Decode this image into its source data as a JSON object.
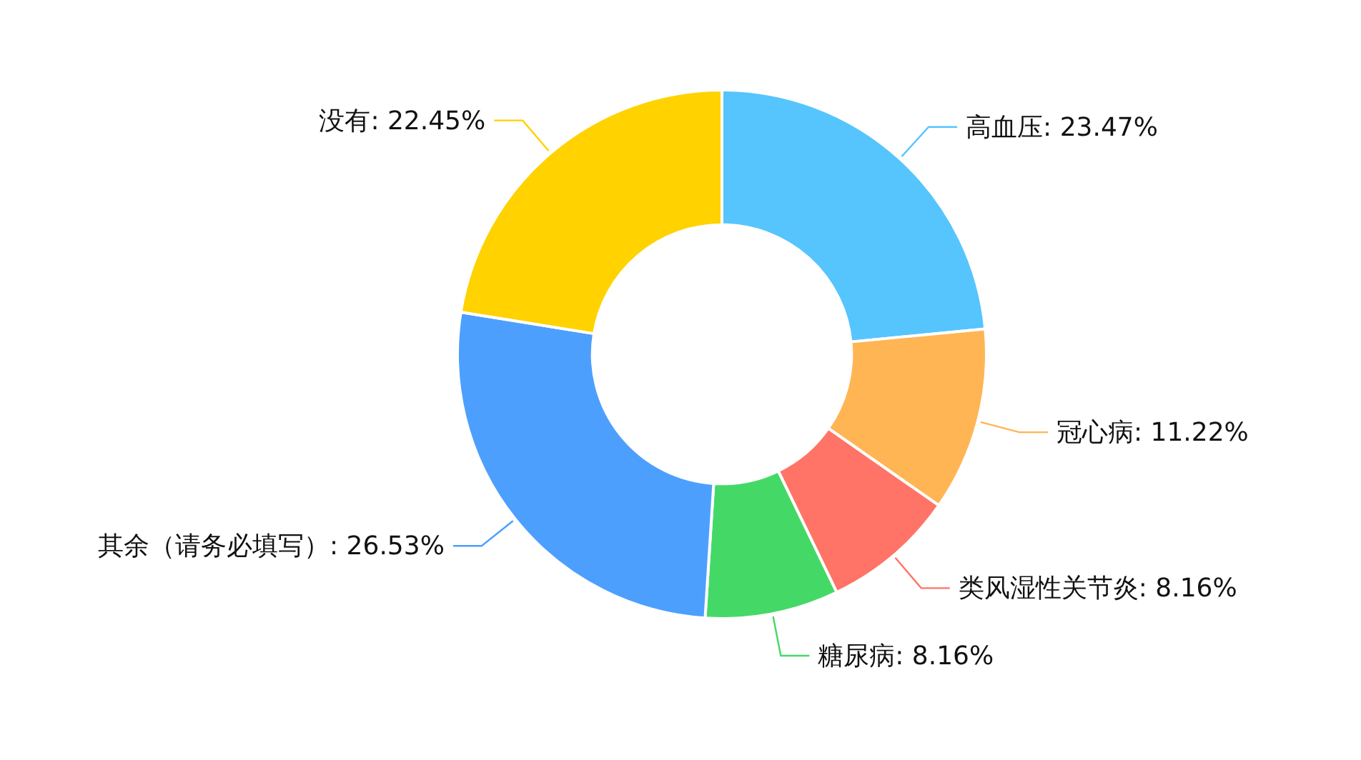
{
  "chart_data": {
    "type": "donut",
    "categories": [
      "高血压",
      "冠心病",
      "类风湿性关节炎",
      "糖尿病",
      "其余（请务必填写）",
      "没有"
    ],
    "values": [
      23.47,
      11.22,
      8.16,
      8.16,
      26.53,
      22.45
    ],
    "colors": [
      "#56c5fd",
      "#ffb554",
      "#ff7466",
      "#44d966",
      "#4d9ffe",
      "#ffd200"
    ],
    "value_labels": [
      ": 23.47%",
      ": 11.22%",
      ": 8.16%",
      ": 8.16%",
      ": 26.53%",
      ": 22.45%"
    ],
    "legend": false
  }
}
